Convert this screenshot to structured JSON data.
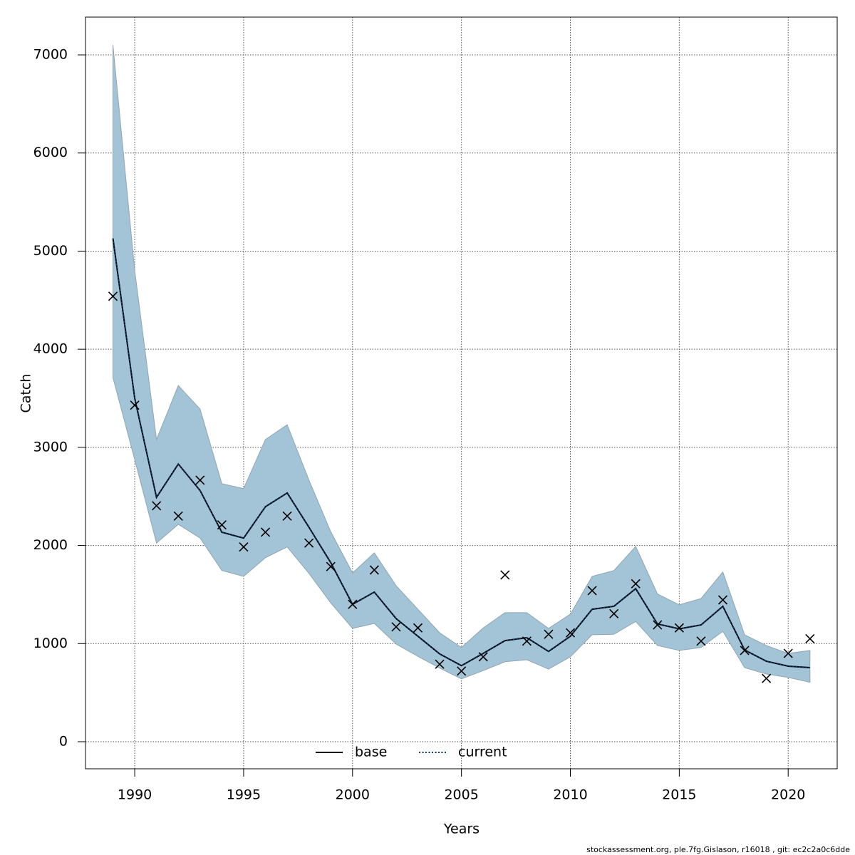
{
  "chart_data": {
    "type": "line",
    "xlabel": "Years",
    "ylabel": "Catch",
    "x": [
      1989,
      1990,
      1991,
      1992,
      1993,
      1994,
      1995,
      1996,
      1997,
      1998,
      1999,
      2000,
      2001,
      2002,
      2003,
      2004,
      2005,
      2006,
      2007,
      2008,
      2009,
      2010,
      2011,
      2012,
      2013,
      2014,
      2015,
      2016,
      2017,
      2018,
      2019,
      2020,
      2021
    ],
    "series": [
      {
        "name": "base",
        "color": "#000000",
        "dash": "solid",
        "values": [
          5130,
          3500,
          2490,
          2830,
          2560,
          2135,
          2075,
          2395,
          2535,
          2185,
          1825,
          1400,
          1525,
          1255,
          1075,
          895,
          775,
          900,
          1030,
          1060,
          920,
          1075,
          1350,
          1380,
          1560,
          1200,
          1150,
          1190,
          1380,
          935,
          820,
          770,
          755
        ]
      },
      {
        "name": "current",
        "color": "#0a3d6b",
        "dash": "dotted",
        "values": [
          5130,
          3500,
          2490,
          2830,
          2560,
          2135,
          2075,
          2395,
          2535,
          2185,
          1825,
          1400,
          1525,
          1255,
          1075,
          895,
          775,
          900,
          1030,
          1060,
          920,
          1075,
          1350,
          1380,
          1560,
          1200,
          1150,
          1190,
          1380,
          935,
          820,
          770,
          755
        ]
      }
    ],
    "band": {
      "color": "#a3c4d6",
      "edge": "#8fa6b3",
      "upper": [
        7100,
        4800,
        3080,
        3630,
        3390,
        2630,
        2580,
        3080,
        3230,
        2665,
        2140,
        1720,
        1925,
        1590,
        1350,
        1110,
        960,
        1160,
        1315,
        1315,
        1155,
        1300,
        1685,
        1745,
        1990,
        1505,
        1395,
        1460,
        1730,
        1090,
        980,
        900,
        930
      ],
      "lower": [
        3710,
        2875,
        2025,
        2215,
        2075,
        1745,
        1685,
        1875,
        1985,
        1715,
        1415,
        1155,
        1205,
        995,
        870,
        750,
        640,
        725,
        815,
        835,
        740,
        865,
        1090,
        1095,
        1225,
        980,
        930,
        960,
        1125,
        755,
        690,
        655,
        605
      ]
    },
    "observed": {
      "color": "#000000",
      "marker": "x",
      "values": [
        4540,
        3430,
        2405,
        2300,
        2665,
        2210,
        1985,
        2135,
        2300,
        2025,
        1785,
        1400,
        1750,
        1170,
        1160,
        790,
        720,
        865,
        1700,
        1025,
        1095,
        1110,
        1540,
        1305,
        1610,
        1190,
        1160,
        1025,
        1445,
        930,
        645,
        900,
        1050
      ]
    },
    "xlim": [
      1987.74,
      2022.25
    ],
    "xticks": [
      1990,
      1995,
      2000,
      2005,
      2010,
      2015,
      2020
    ],
    "ylim": [
      -276,
      7385
    ],
    "yticks": [
      0,
      1000,
      2000,
      3000,
      4000,
      5000,
      6000,
      7000
    ],
    "grid": true,
    "legend": "bottom",
    "footnote": "stockassessment.org, ple.7fg.Gislason, r16018 , git: ec2c2a0c6dde"
  }
}
